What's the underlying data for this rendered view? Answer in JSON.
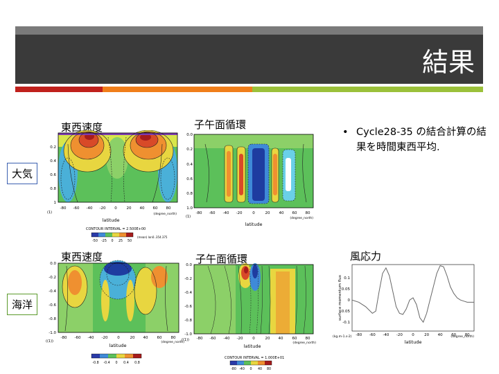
{
  "slide": {
    "title": "結果",
    "accent_colors": [
      "#c0201c",
      "#f07e1a",
      "#9bc13a"
    ]
  },
  "captions": {
    "atm_zonal": "東西速度",
    "atm_meridional": "子午面循環",
    "ocn_zonal": "東西速度",
    "ocn_meridional": "子午面循環",
    "wind_stress": "風応力"
  },
  "row_labels": {
    "atmosphere": "大気",
    "ocean": "海洋"
  },
  "bullet": {
    "symbol": "•",
    "text": "Cycle28-35 の結合計算の結果を時間東西平均."
  },
  "plots": {
    "atm_zonal": {
      "xticks": [
        "-80",
        "-60",
        "-40",
        "-20",
        "0",
        "20",
        "40",
        "60",
        "80"
      ],
      "yticks": [
        "0.2",
        "0.4",
        "0.6",
        "0.8",
        "1"
      ],
      "xlabel": "latitude",
      "xunit": "(degree_north)",
      "yunit": "(1)",
      "contour_interval": "CONTOUR INTERVAL = 2.500E+00",
      "colorbar_ticks": [
        "-50",
        "-25",
        "0",
        "25",
        "50"
      ],
      "note": "(mean) lon0..354.375"
    },
    "atm_meridional": {
      "xticks": [
        "-80",
        "-60",
        "-40",
        "-20",
        "0",
        "20",
        "40",
        "60",
        "80"
      ],
      "yticks": [
        "0.0",
        "0.2",
        "0.4",
        "0.6",
        "0.8",
        "1.0"
      ],
      "xlabel": "latitude",
      "xunit": "(degree_north)",
      "yunit": "(1)"
    },
    "ocn_zonal": {
      "xticks": [
        "-80",
        "-60",
        "-40",
        "-20",
        "0",
        "20",
        "40",
        "60",
        "80"
      ],
      "yticks": [
        "0.0",
        "-0.2",
        "-0.4",
        "-0.6",
        "-0.8",
        "-1.0"
      ],
      "xlabel": "latitude",
      "xunit": "(degree_north)",
      "yunit": "((1))",
      "colorbar_ticks": [
        "-0.8",
        "-0.4",
        "0",
        "0.4",
        "0.8"
      ]
    },
    "ocn_meridional": {
      "xticks": [
        "-80",
        "-60",
        "-40",
        "-20",
        "0",
        "20",
        "40",
        "60",
        "80"
      ],
      "yticks": [
        "0.0",
        "-0.2",
        "-0.4",
        "-0.6",
        "-0.8",
        "-1.0"
      ],
      "xlabel": "latitude",
      "xunit": "(degree_north)",
      "yunit": "((1))",
      "contour_interval": "CONTOUR INTERVAL = 1.000E+01",
      "colorbar_ticks": [
        "-80",
        "-40",
        "0",
        "40",
        "80"
      ]
    },
    "wind_stress": {
      "xticks": [
        "-80",
        "-60",
        "-40",
        "-20",
        "0",
        "20",
        "40",
        "60",
        "80"
      ],
      "yticks": [
        "0.1",
        "0.05",
        "0",
        "-0.05",
        "-0.1"
      ],
      "xlabel": "latitude",
      "xunit": "(degree_north)",
      "ylabel": "surface momentum flux",
      "yunit": "(kg.m-1.s-2)"
    }
  },
  "chart_data": {
    "type": "line",
    "title": "",
    "xlabel": "latitude",
    "ylabel": "surface momentum flux",
    "xlim": [
      -90,
      90
    ],
    "ylim": [
      -0.14,
      0.16
    ],
    "series": [
      {
        "x": [
          -90,
          -80,
          -70,
          -60,
          -55,
          -50,
          -45,
          -40,
          -35,
          -30,
          -25,
          -20,
          -15,
          -10,
          -5,
          0,
          5,
          10,
          15,
          20,
          25,
          30,
          35,
          40,
          45,
          50,
          55,
          60,
          65,
          70,
          75,
          80,
          85,
          90
        ],
        "values": [
          0.0,
          -0.01,
          -0.03,
          -0.06,
          -0.05,
          0.04,
          0.12,
          0.145,
          0.11,
          0.04,
          -0.03,
          -0.06,
          -0.065,
          -0.04,
          0.0,
          0.01,
          -0.02,
          -0.08,
          -0.1,
          -0.06,
          0.0,
          0.06,
          0.12,
          0.155,
          0.15,
          0.11,
          0.06,
          0.03,
          0.01,
          0.0,
          -0.005,
          -0.01,
          -0.01,
          -0.01
        ]
      }
    ]
  }
}
